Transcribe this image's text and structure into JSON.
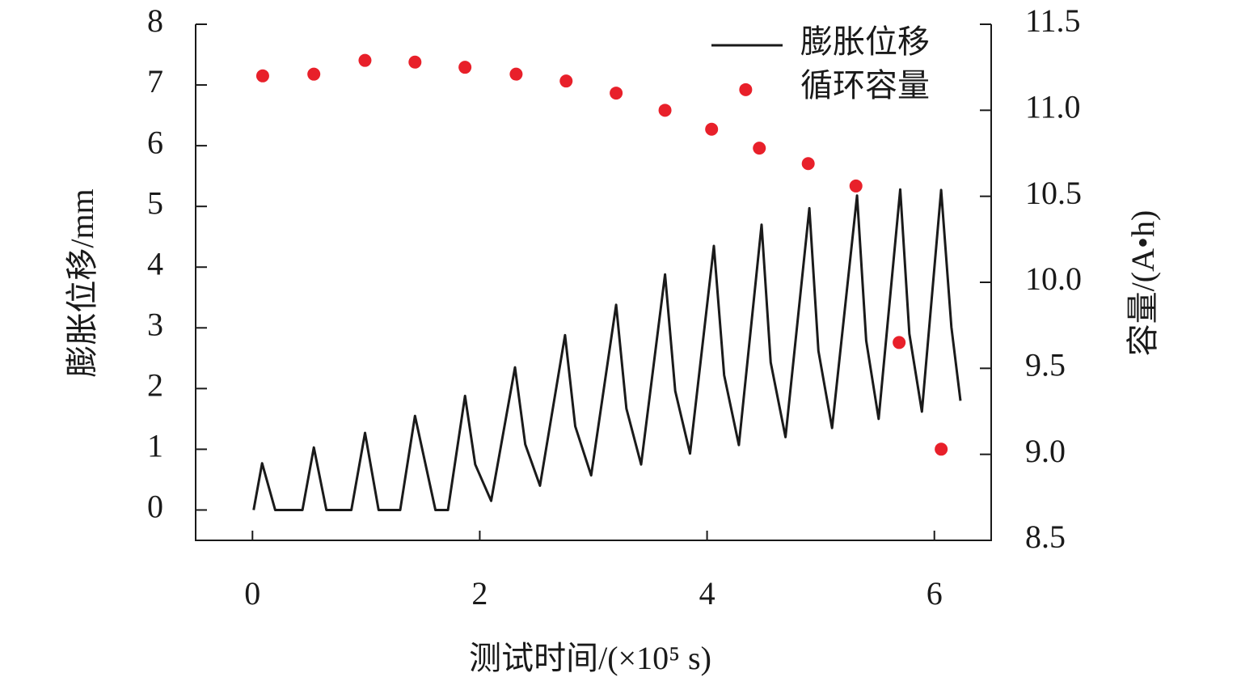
{
  "chart_data": {
    "type": "line",
    "x_label": "测试时间/(×10⁵ s)",
    "y_label": "膨胀位移/mm",
    "y2_label": "容量/(A•h)",
    "xlim": [
      -0.5,
      6.5
    ],
    "xticks": [
      0,
      2,
      4,
      6
    ],
    "ylim": [
      -0.5,
      8
    ],
    "yticks": [
      0,
      1,
      2,
      3,
      4,
      5,
      6,
      7,
      8
    ],
    "y2lim": [
      8.5,
      11.5
    ],
    "y2ticks": [
      8.5,
      {
        "value": 9,
        "label": "9.0"
      },
      9.5,
      {
        "value": 10,
        "label": "10.0"
      },
      10.5,
      {
        "value": 11,
        "label": "11.0"
      },
      11.5
    ],
    "legend": "upper right",
    "series": [
      {
        "name": "膨胀位移",
        "type": "line",
        "color": "#1a1a1a",
        "x": [
          0.01,
          0.085,
          0.2,
          0.44,
          0.54,
          0.65,
          0.87,
          0.99,
          1.11,
          1.3,
          1.43,
          1.61,
          1.72,
          1.87,
          1.96,
          2.1,
          2.31,
          2.4,
          2.53,
          2.75,
          2.84,
          2.98,
          3.2,
          3.29,
          3.42,
          3.63,
          3.72,
          3.85,
          4.06,
          4.15,
          4.28,
          4.48,
          4.56,
          4.69,
          4.9,
          4.98,
          5.1,
          5.32,
          5.4,
          5.51,
          5.7,
          5.78,
          5.89,
          6.06,
          6.15,
          6.23
        ],
        "values": [
          0,
          0.77,
          0,
          0,
          1.03,
          0,
          0,
          1.27,
          0,
          0,
          1.55,
          0,
          0,
          1.88,
          0.75,
          0.15,
          2.35,
          1.08,
          0.4,
          2.88,
          1.38,
          0.57,
          3.38,
          1.67,
          0.75,
          3.88,
          1.96,
          0.93,
          4.35,
          2.22,
          1.07,
          4.7,
          2.43,
          1.2,
          4.97,
          2.62,
          1.35,
          5.18,
          2.79,
          1.5,
          5.28,
          2.9,
          1.62,
          5.27,
          3.01,
          1.8
        ]
      },
      {
        "name": "循环容量",
        "type": "scatter",
        "color": "#e8202a",
        "axis": "y2",
        "x": [
          0.09,
          0.54,
          0.99,
          1.43,
          1.87,
          2.32,
          2.76,
          3.2,
          3.63,
          4.04,
          4.34,
          4.46,
          4.89,
          5.31,
          5.69,
          6.06
        ],
        "values": [
          11.2,
          11.21,
          11.29,
          11.28,
          11.25,
          11.21,
          11.17,
          11.1,
          11.0,
          10.89,
          11.12,
          10.78,
          10.69,
          10.56,
          9.65,
          9.03
        ]
      }
    ]
  }
}
